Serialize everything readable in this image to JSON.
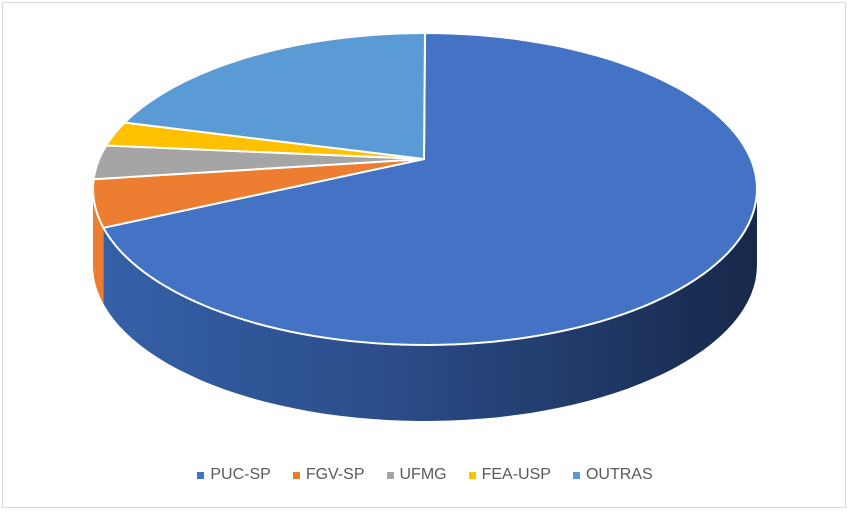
{
  "chart_data": {
    "type": "pie",
    "style": "3d-pie",
    "title": "",
    "categories": [
      "PUC-SP",
      "FGV-SP",
      "UFMG",
      "FEA-USP",
      "OUTRAS"
    ],
    "values": [
      71,
      5,
      3.5,
      2.5,
      18
    ],
    "unit": "approx. percent of total (estimated from slice angles)",
    "colors": [
      "#4472C4",
      "#ED7D31",
      "#A5A5A5",
      "#FFC000",
      "#5B9BD5"
    ],
    "legend_position": "bottom",
    "grid": false
  },
  "legend": {
    "items": [
      {
        "label": "PUC-SP",
        "color": "#4472C4"
      },
      {
        "label": "FGV-SP",
        "color": "#ED7D31"
      },
      {
        "label": "UFMG",
        "color": "#A5A5A5"
      },
      {
        "label": "FEA-USP",
        "color": "#FFC000"
      },
      {
        "label": "OUTRAS",
        "color": "#5B9BD5"
      }
    ]
  }
}
